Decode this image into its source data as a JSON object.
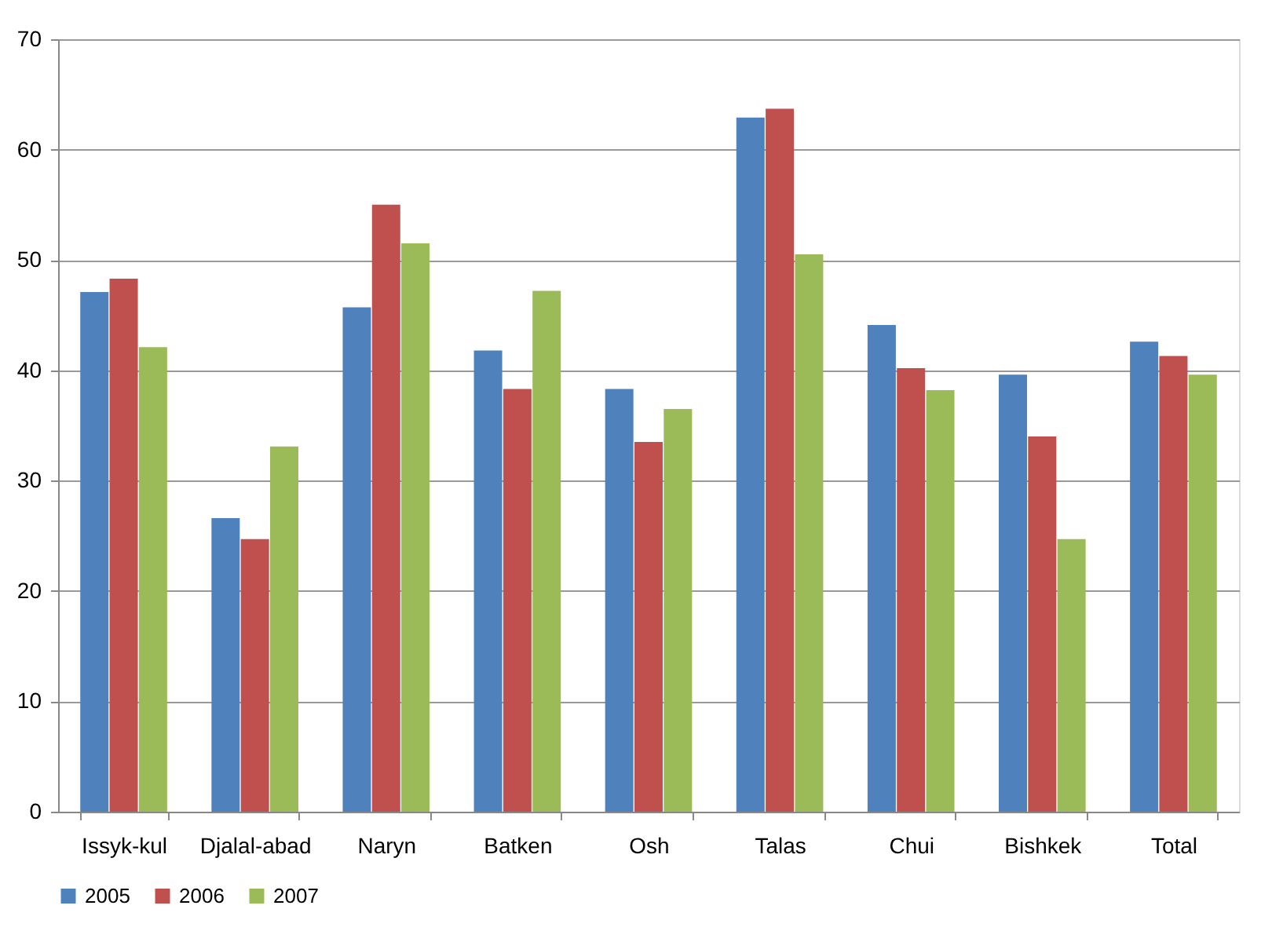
{
  "chart_data": {
    "type": "bar",
    "categories": [
      "Issyk-kul",
      "Djalal-abad",
      "Naryn",
      "Batken",
      "Osh",
      "Talas",
      "Chui",
      "Bishkek",
      "Total"
    ],
    "series": [
      {
        "name": "2005",
        "color": "#4f81bd",
        "values": [
          47.1,
          26.6,
          45.7,
          41.8,
          38.3,
          62.9,
          44.1,
          39.6,
          42.6
        ]
      },
      {
        "name": "2006",
        "color": "#c0504d",
        "values": [
          48.3,
          24.7,
          55.0,
          38.3,
          33.5,
          63.7,
          40.2,
          34.0,
          41.3
        ]
      },
      {
        "name": "2007",
        "color": "#9bbb59",
        "values": [
          42.1,
          33.1,
          51.5,
          47.2,
          36.5,
          50.5,
          38.2,
          24.7,
          39.6
        ]
      }
    ],
    "ylim": [
      0,
      70
    ],
    "yticks": [
      0,
      10,
      20,
      30,
      40,
      50,
      60,
      70
    ],
    "grid": "y",
    "legend": "bottom"
  }
}
